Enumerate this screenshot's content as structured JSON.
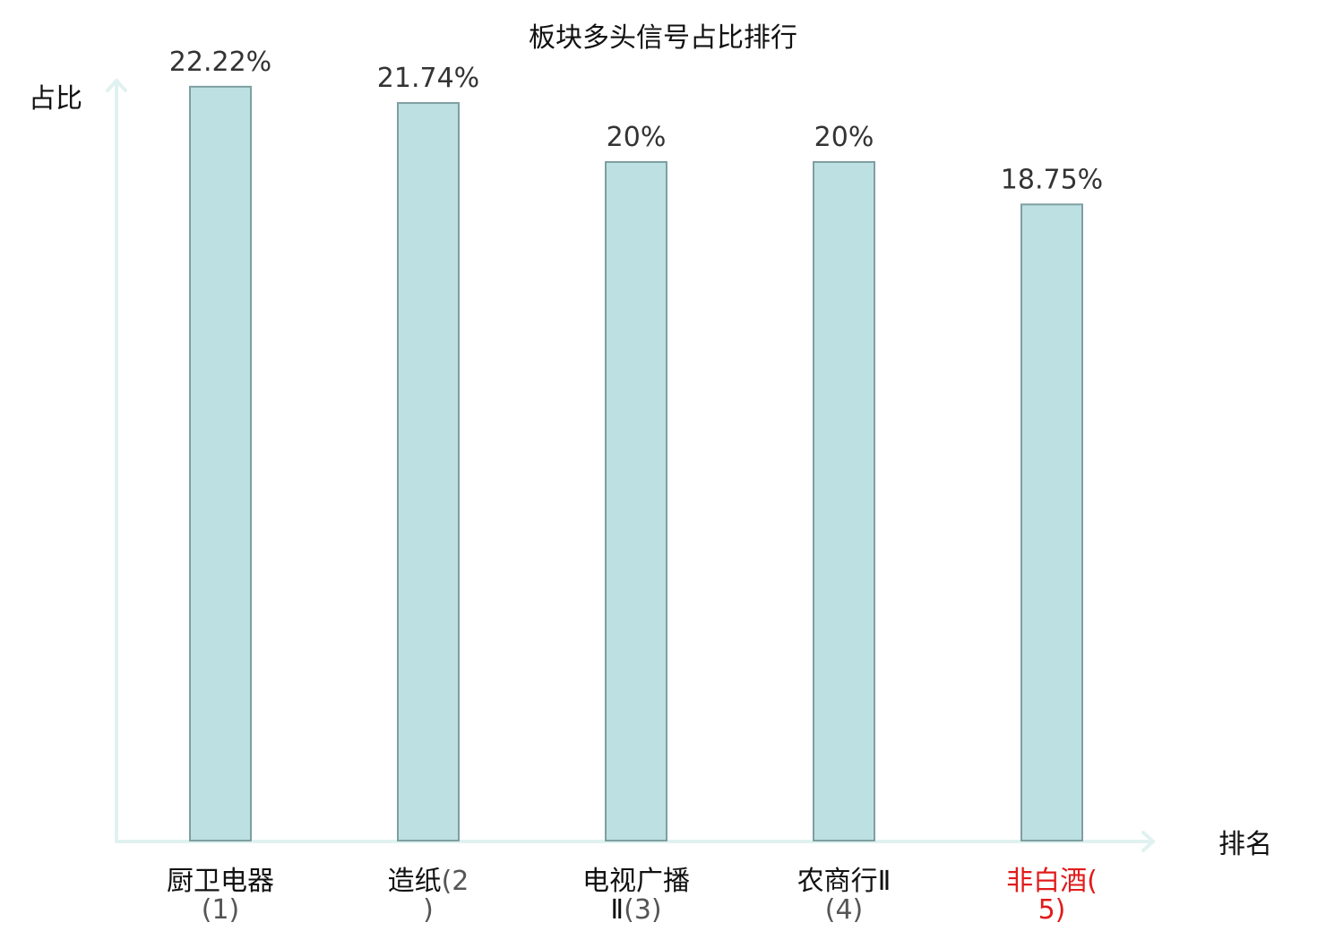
{
  "chart_data": {
    "type": "bar",
    "title": "板块多头信号占比排行",
    "ylabel": "占比",
    "xlabel": "排名",
    "categories": [
      {
        "name": "厨卫电器",
        "rank": "(1)"
      },
      {
        "name": "造纸",
        "rank": "(2)"
      },
      {
        "name": "电视广播Ⅱ",
        "rank": "(3)"
      },
      {
        "name": "农商行Ⅱ",
        "rank": "(4)"
      },
      {
        "name": "非白酒",
        "rank": "(5)"
      }
    ],
    "values": [
      22.22,
      21.74,
      20,
      20,
      18.75
    ],
    "value_labels": [
      "22.22%",
      "21.74%",
      "20%",
      "20%",
      "18.75%"
    ],
    "ylim": [
      0,
      25
    ],
    "grid": false,
    "legend": "none",
    "colors": {
      "bar_fill": "#bde0e2",
      "bar_stroke": "#7e9fa1",
      "axis": "#e0f2f0",
      "highlight_label": "#e11b1b"
    },
    "highlight_index": 4
  }
}
